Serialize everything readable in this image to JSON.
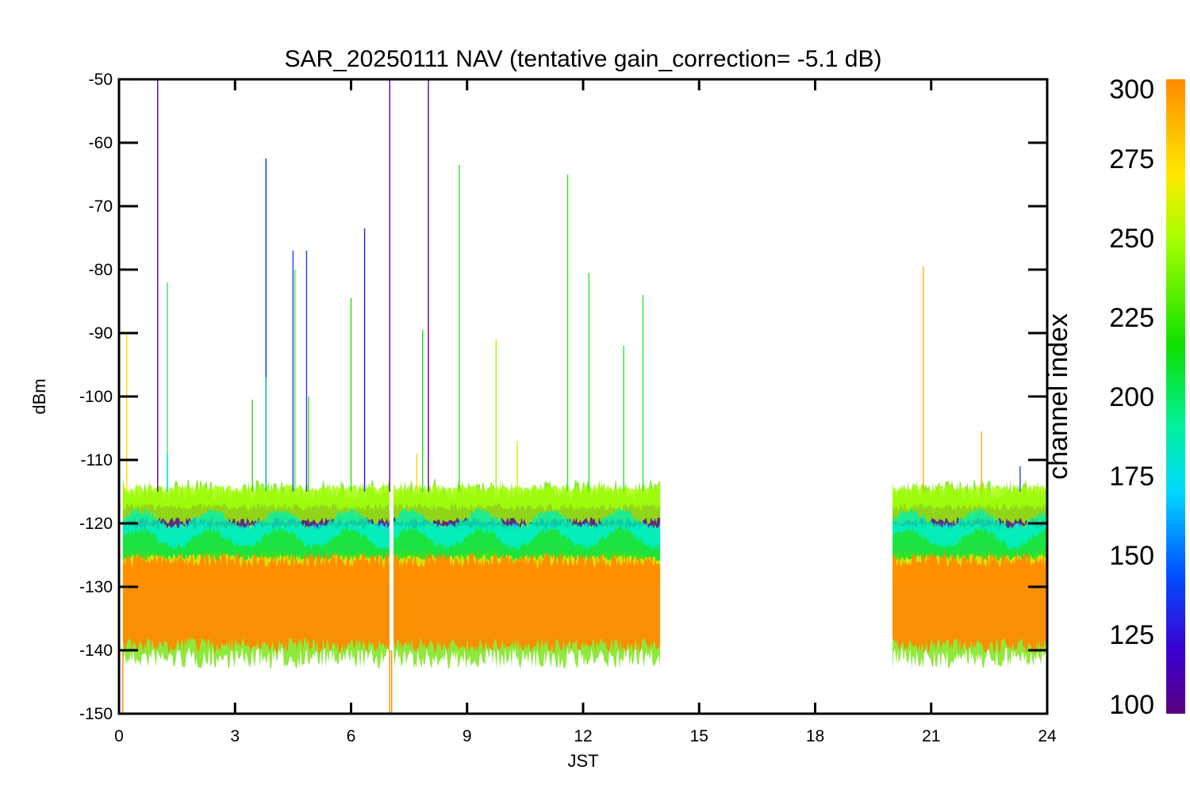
{
  "chart_data": {
    "type": "line",
    "title": "SAR_20250111 NAV (tentative gain_correction= -5.1 dB)",
    "xlabel": "JST",
    "ylabel": "dBm",
    "xlim": [
      0,
      24
    ],
    "ylim": [
      -150,
      -50
    ],
    "xticks": [
      "0",
      "3",
      "6",
      "9",
      "12",
      "15",
      "18",
      "21",
      "24"
    ],
    "yticks": [
      "-50",
      "-60",
      "-70",
      "-80",
      "-90",
      "-100",
      "-110",
      "-120",
      "-130",
      "-140",
      "-150"
    ],
    "colorbar": {
      "label": "channel index",
      "range": [
        100,
        300
      ],
      "ticks": [
        "300",
        "275",
        "250",
        "225",
        "200",
        "175",
        "150",
        "125",
        "100"
      ],
      "colors": [
        "#5a0080",
        "#3a00d0",
        "#0050ff",
        "#00d8ff",
        "#00f0a0",
        "#10e000",
        "#a8ff00",
        "#ffe800",
        "#ff8a00"
      ]
    },
    "data_segments_hours": [
      [
        0.1,
        7.0
      ],
      [
        7.1,
        14.0
      ],
      [
        20.0,
        24.0
      ]
    ],
    "bands": [
      {
        "name": "ch~300",
        "color": "#ff8a00",
        "y_range": [
          -138,
          -127
        ]
      },
      {
        "name": "ch~285",
        "color": "#ffe000",
        "y_range": [
          -129,
          -126
        ]
      },
      {
        "name": "ch~255",
        "color": "#a0ff00",
        "y_range": [
          -119,
          -115
        ]
      },
      {
        "name": "ch~220",
        "color": "#20e020",
        "y_range": [
          -127,
          -123
        ]
      },
      {
        "name": "ch~195",
        "color": "#00f0b0",
        "y_range": [
          -124,
          -120
        ]
      },
      {
        "name": "ch~180",
        "color": "#00e0ff",
        "y_range": [
          -124,
          -121
        ]
      },
      {
        "name": "ch~105",
        "color": "#4a0090",
        "y_range": [
          -120,
          -118
        ]
      }
    ],
    "spikes": [
      {
        "x": 0.2,
        "y": -90,
        "color": "#ffd800"
      },
      {
        "x": 1.0,
        "y": -50,
        "color": "#5a0090"
      },
      {
        "x": 1.25,
        "y": -82,
        "color": "#40e060"
      },
      {
        "x": 1.25,
        "y": -109,
        "color": "#00d8ff"
      },
      {
        "x": 3.45,
        "y": -100.5,
        "color": "#20d020"
      },
      {
        "x": 3.8,
        "y": -62.5,
        "color": "#0030ff"
      },
      {
        "x": 3.8,
        "y": -97,
        "color": "#00c0a0"
      },
      {
        "x": 4.5,
        "y": -77,
        "color": "#2040ff"
      },
      {
        "x": 4.55,
        "y": -80,
        "color": "#40ff20"
      },
      {
        "x": 4.85,
        "y": -77,
        "color": "#2040ff"
      },
      {
        "x": 4.9,
        "y": -100,
        "color": "#40e000"
      },
      {
        "x": 6.0,
        "y": -84.5,
        "color": "#20e020"
      },
      {
        "x": 6.35,
        "y": -73.5,
        "color": "#2020e0"
      },
      {
        "x": 7.0,
        "y": -50,
        "color": "#5a0090"
      },
      {
        "x": 7.7,
        "y": -109,
        "color": "#ffd800"
      },
      {
        "x": 7.85,
        "y": -89.5,
        "color": "#20e020"
      },
      {
        "x": 8.0,
        "y": -50,
        "color": "#5a0090"
      },
      {
        "x": 8.8,
        "y": -63.5,
        "color": "#30e030"
      },
      {
        "x": 9.75,
        "y": -91,
        "color": "#a0ff00"
      },
      {
        "x": 10.3,
        "y": -107,
        "color": "#c0ff00"
      },
      {
        "x": 11.6,
        "y": -65,
        "color": "#30e030"
      },
      {
        "x": 12.15,
        "y": -80.5,
        "color": "#30e030"
      },
      {
        "x": 13.05,
        "y": -92,
        "color": "#30e030"
      },
      {
        "x": 13.55,
        "y": -84,
        "color": "#30e030"
      },
      {
        "x": 20.8,
        "y": -79.5,
        "color": "#ffb000"
      },
      {
        "x": 22.3,
        "y": -105.5,
        "color": "#ffb000"
      },
      {
        "x": 23.3,
        "y": -111,
        "color": "#2040ff"
      }
    ]
  }
}
